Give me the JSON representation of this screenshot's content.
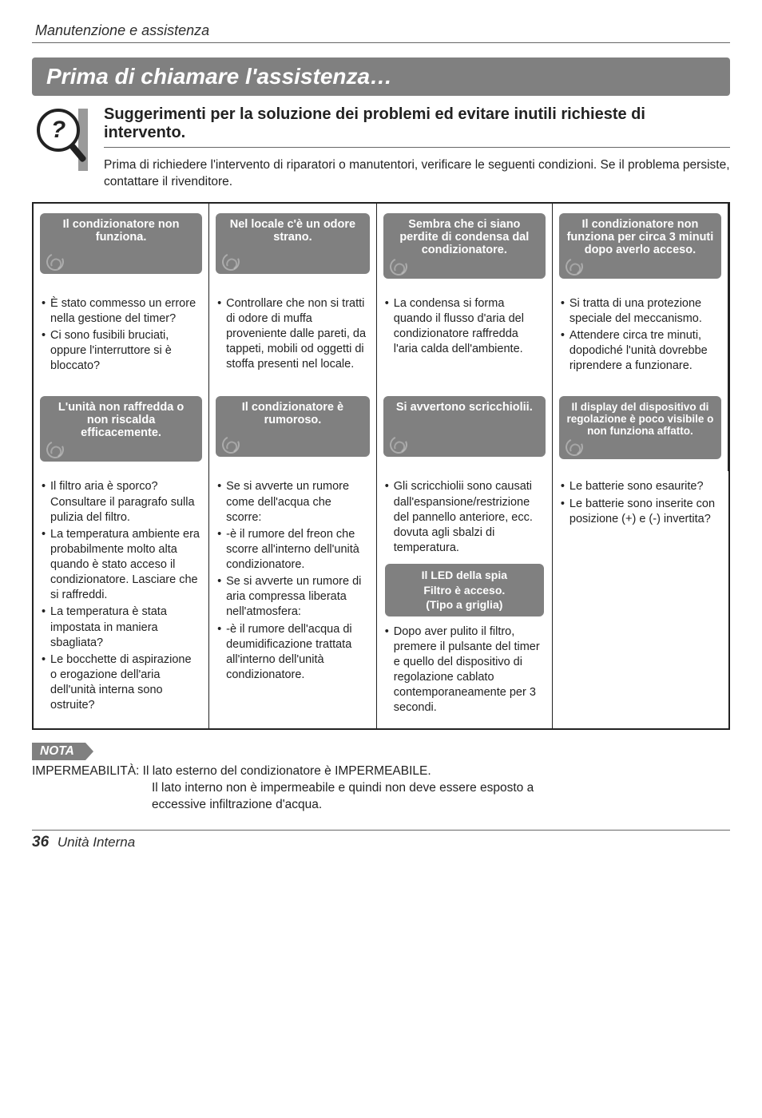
{
  "colors": {
    "grey": "#808080",
    "text": "#222222",
    "rule": "#666666"
  },
  "top_section_label": "Manutenzione e assistenza",
  "banner": "Prima di chiamare l'assistenza…",
  "magnifier_glyph": "?",
  "intro_title": "Suggerimenti per la soluzione dei problemi ed evitare inutili richieste di intervento.",
  "intro_body": "Prima di richiedere l'intervento di riparatori o manutentori, verificare le seguenti condizioni. Se il problema persiste, contattare il rivenditore.",
  "row1": {
    "h1": "Il condizionatore non funziona.",
    "h2": "Nel locale c'è un odore strano.",
    "h3": "Sembra che ci siano perdite di condensa dal condizionatore.",
    "h4": "Il condizionatore non funziona per circa 3 minuti dopo averlo acceso.",
    "c1": [
      "È stato commesso un errore nella gestione del timer?",
      "Ci sono fusibili bruciati, oppure l'interruttore si è bloccato?"
    ],
    "c2": [
      "Controllare che non si tratti di odore di muffa proveniente dalle pareti, da tappeti, mobili od oggetti di stoffa presenti nel locale."
    ],
    "c3": [
      "La condensa si forma quando il flusso d'aria del condizionatore raffredda l'aria calda dell'ambiente."
    ],
    "c4": [
      "Si tratta di una protezione speciale del meccanismo.",
      "Attendere circa tre minuti, dopodiché l'unità dovrebbe riprendere a funzionare."
    ]
  },
  "row2": {
    "h1": "L'unità non raffredda o non riscalda efficacemente.",
    "h2": "Il condizionatore è rumoroso.",
    "h3": "Si avvertono scricchiolii.",
    "h4": "Il display del dispositivo di regolazione è poco visibile o non funziona affatto.",
    "c1": [
      "Il filtro aria è sporco?Consultare il paragrafo sulla pulizia del filtro.",
      "La temperatura ambiente era probabilmente molto alta quando è stato acceso il condizionatore. Lasciare che si raffreddi.",
      "La temperatura è stata impostata in maniera sbagliata?",
      "Le bocchette di aspirazione o erogazione dell'aria dell'unità interna sono ostruite?"
    ],
    "c2": [
      "Se si avverte un rumore come dell'acqua che scorre:",
      "-è il rumore del freon che scorre all'interno dell'unità condizionatore.",
      "Se si avverte un rumore di aria compressa liberata nell'atmosfera:",
      "-è il rumore dell'acqua di deumidificazione trattata all'interno dell'unità condizionatore."
    ],
    "c3_top": [
      "Gli scricchiolii sono causati dall'espansione/restrizione del pannello anteriore, ecc. dovuta agli sbalzi di temperatura."
    ],
    "c3_tile": [
      "Il LED della spia",
      "Filtro è acceso.",
      "(Tipo a griglia)"
    ],
    "c3_bottom": [
      "Dopo aver pulito il filtro, premere il pulsante del timer e quello del dispositivo di regolazione cablato contemporaneamente per 3 secondi."
    ],
    "c4": [
      "Le batterie sono esaurite?",
      "Le batterie sono inserite con posizione (+) e (-) invertita?"
    ]
  },
  "nota_label": "NOTA",
  "nota_lead": "IMPERMEABILITÀ: Il lato esterno del condizionatore è IMPERMEABILE.",
  "nota_cont1": "Il lato interno non è impermeabile e quindi non deve essere esposto a",
  "nota_cont2": "eccessive infiltrazione d'acqua.",
  "footer_page": "36",
  "footer_label": "Unità Interna"
}
